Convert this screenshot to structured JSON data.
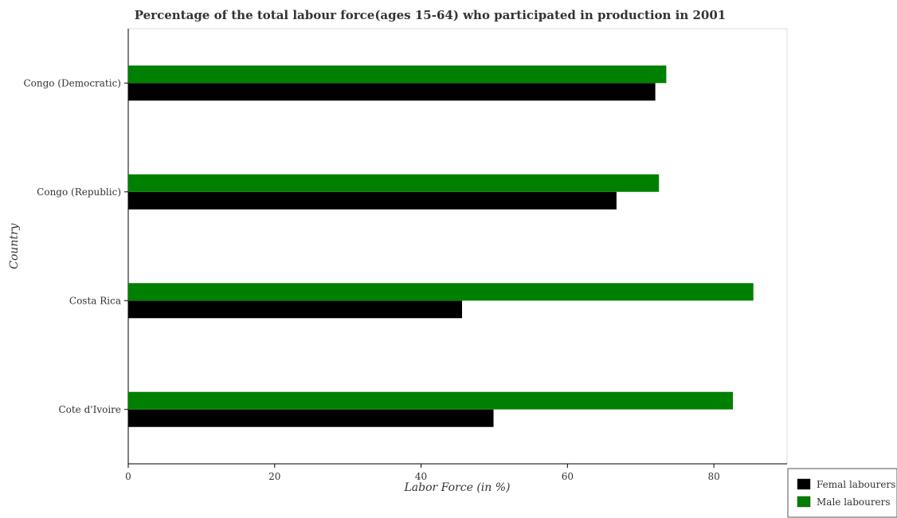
{
  "chart_data": {
    "type": "bar",
    "orientation": "horizontal",
    "title": "Percentage of the total labour force(ages 15-64) who participated in production in 2001",
    "xlabel": "Labor Force (in %)",
    "ylabel": "Country",
    "categories": [
      "Congo (Democratic)",
      "Congo (Republic)",
      "Costa Rica",
      "Cote d'Ivoire"
    ],
    "series": [
      {
        "name": "Femal labourers",
        "color": "#000000",
        "values": [
          72.0,
          66.7,
          45.6,
          49.9
        ]
      },
      {
        "name": "Male labourers",
        "color": "#008000",
        "values": [
          73.5,
          72.5,
          85.4,
          82.6
        ]
      }
    ],
    "xlim": [
      0,
      90
    ],
    "xticks": [
      0,
      20,
      40,
      60,
      80
    ],
    "xtick_labels": [
      "0",
      "20",
      "40",
      "60",
      "80"
    ],
    "grid": false,
    "legend_position": "bottom-right"
  }
}
